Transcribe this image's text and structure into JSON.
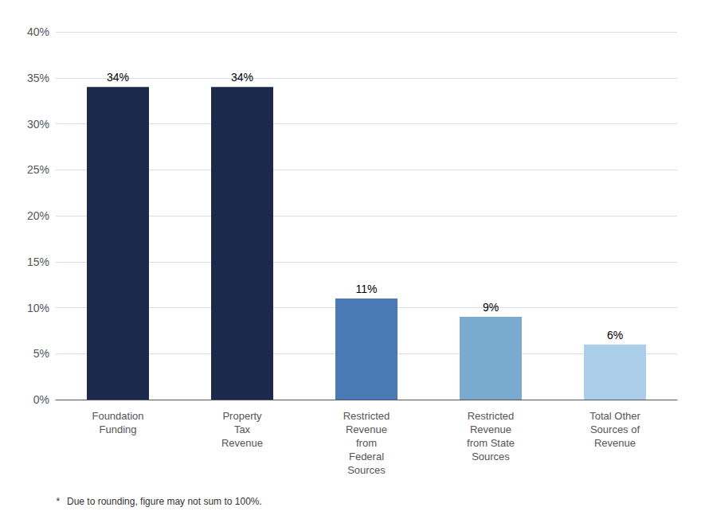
{
  "chart_data": {
    "type": "bar",
    "categories": [
      "Foundation\nFunding",
      "Property\nTax\nRevenue",
      "Restricted\nRevenue\nfrom\nFederal\nSources",
      "Restricted\nRevenue\nfrom State\nSources",
      "Total Other\nSources of\nRevenue"
    ],
    "values": [
      34,
      34,
      11,
      9,
      6
    ],
    "value_labels": [
      "34%",
      "34%",
      "11%",
      "9%",
      "6%"
    ],
    "data_labels": true,
    "colors": [
      "#1b2a4a",
      "#1b2a4a",
      "#4a7ab5",
      "#7aabcf",
      "#aacde8"
    ],
    "ylim": [
      0,
      40
    ],
    "yticks": [
      {
        "value": 0,
        "label": "0%"
      },
      {
        "value": 5,
        "label": "5%"
      },
      {
        "value": 10,
        "label": "10%"
      },
      {
        "value": 15,
        "label": "15%"
      },
      {
        "value": 20,
        "label": "20%"
      },
      {
        "value": 25,
        "label": "25%"
      },
      {
        "value": 30,
        "label": "30%"
      },
      {
        "value": 35,
        "label": "35%"
      },
      {
        "value": 40,
        "label": "40%"
      }
    ],
    "grid": true,
    "annotations": [
      "*",
      "Due to rounding, figure may not sum to 100%."
    ]
  }
}
